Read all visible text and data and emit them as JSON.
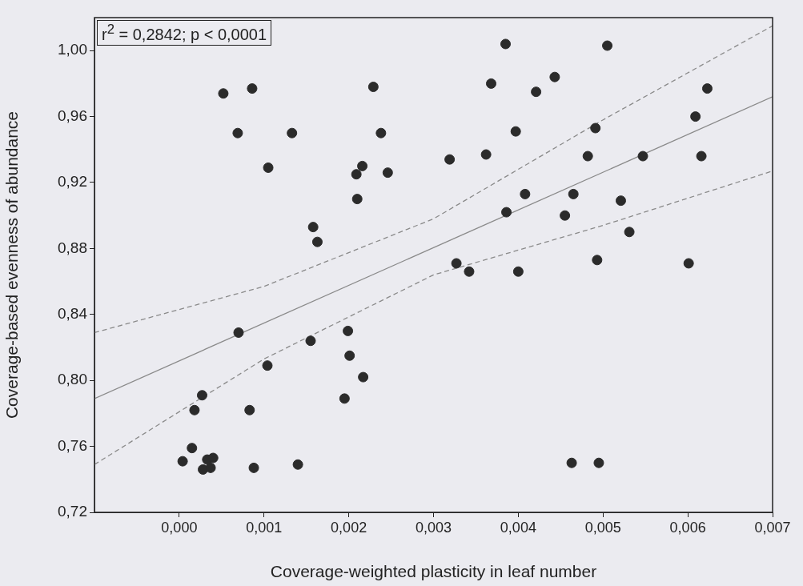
{
  "chart_data": {
    "type": "scatter",
    "xlabel": "Coverage-weighted plasticity in leaf number",
    "ylabel": "Coverage-based evenness of abundance",
    "annotations": [
      "r$^{2}$ = 0,2842; p < 0,0001"
    ],
    "xlim": [
      -0.001,
      0.007
    ],
    "ylim": [
      0.72,
      1.02
    ],
    "xticks": [
      {
        "value": 0,
        "label": "0,000"
      },
      {
        "value": 0.001,
        "label": "0,001"
      },
      {
        "value": 0.002,
        "label": "0,002"
      },
      {
        "value": 0.003,
        "label": "0,003"
      },
      {
        "value": 0.004,
        "label": "0,004"
      },
      {
        "value": 0.005,
        "label": "0,005"
      },
      {
        "value": 0.006,
        "label": "0,006"
      },
      {
        "value": 0.007,
        "label": "0,007"
      }
    ],
    "yticks": [
      {
        "value": 0.72,
        "label": "0,72"
      },
      {
        "value": 0.76,
        "label": "0,76"
      },
      {
        "value": 0.8,
        "label": "0,80"
      },
      {
        "value": 0.84,
        "label": "0,84"
      },
      {
        "value": 0.88,
        "label": "0,88"
      },
      {
        "value": 0.92,
        "label": "0,92"
      },
      {
        "value": 0.96,
        "label": "0,96"
      },
      {
        "value": 1.0,
        "label": "1,00"
      }
    ],
    "grid": false,
    "legend": false,
    "marker": "circle",
    "series": [
      {
        "color": "#2b2b2b",
        "x": [
          0.00052,
          0.00086,
          0.00069,
          0.00133,
          0.00105,
          0.00229,
          0.00238,
          0.00216,
          0.00209,
          0.00246,
          0.0021,
          0.00158,
          0.00163,
          0.00385,
          0.00505,
          0.00368,
          0.00443,
          0.00421,
          0.00623,
          0.00609,
          0.00397,
          0.00491,
          0.00319,
          0.00362,
          0.00482,
          0.00547,
          0.00616,
          0.00408,
          0.00465,
          0.00386,
          0.00455,
          0.00521,
          0.00531,
          0.00327,
          0.00342,
          0.004,
          0.00493,
          0.00601,
          0.0007,
          0.00155,
          0.00199,
          0.00201,
          0.00104,
          0.00217,
          0.00195,
          0.00027,
          0.00018,
          0.00083,
          0.00015,
          4e-05,
          0.00028,
          0.00037,
          0.00033,
          0.0004,
          0.00088,
          0.0014,
          0.00463,
          0.00495
        ],
        "values": [
          0.974,
          0.977,
          0.95,
          0.95,
          0.929,
          0.978,
          0.95,
          0.93,
          0.925,
          0.926,
          0.91,
          0.893,
          0.884,
          1.004,
          1.003,
          0.98,
          0.984,
          0.975,
          0.977,
          0.96,
          0.951,
          0.953,
          0.934,
          0.937,
          0.936,
          0.936,
          0.936,
          0.913,
          0.913,
          0.902,
          0.9,
          0.909,
          0.89,
          0.871,
          0.866,
          0.866,
          0.873,
          0.871,
          0.829,
          0.824,
          0.83,
          0.815,
          0.809,
          0.802,
          0.789,
          0.791,
          0.782,
          0.782,
          0.759,
          0.751,
          0.746,
          0.747,
          0.752,
          0.753,
          0.747,
          0.749,
          0.75,
          0.75
        ]
      },
      {
        "type": "line",
        "color": "#8a8a8a",
        "line_style": "solid",
        "marker": "none",
        "x": [
          -0.001,
          0.007
        ],
        "values": [
          0.789,
          0.972
        ]
      },
      {
        "type": "line",
        "color": "#8a8a8a",
        "line_style": "dashed",
        "marker": "none",
        "x": [
          -0.001,
          0.001,
          0.003,
          0.005,
          0.007
        ],
        "values": [
          0.829,
          0.857,
          0.898,
          0.958,
          1.015
        ]
      },
      {
        "type": "line",
        "color": "#8a8a8a",
        "line_style": "dashed",
        "marker": "none",
        "x": [
          -0.001,
          0.001,
          0.003,
          0.005,
          0.007
        ],
        "values": [
          0.749,
          0.813,
          0.864,
          0.894,
          0.927
        ]
      }
    ]
  }
}
